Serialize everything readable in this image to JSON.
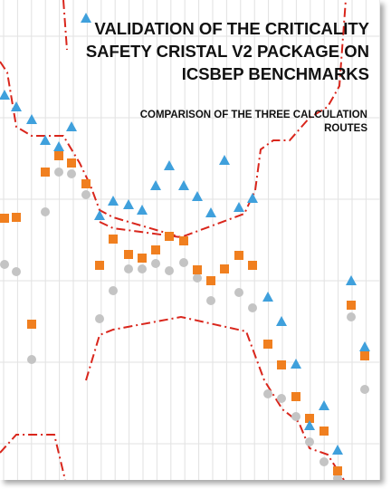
{
  "cover": {
    "title": [
      "VALIDATION OF THE CRITICALITY",
      "SAFETY CRISTAL V2 PACKAGE ON",
      "ICSBEP BENCHMARKS"
    ],
    "subtitle": [
      "COMPARISON OF THE THREE CALCULATION",
      "ROUTES"
    ]
  }
}
